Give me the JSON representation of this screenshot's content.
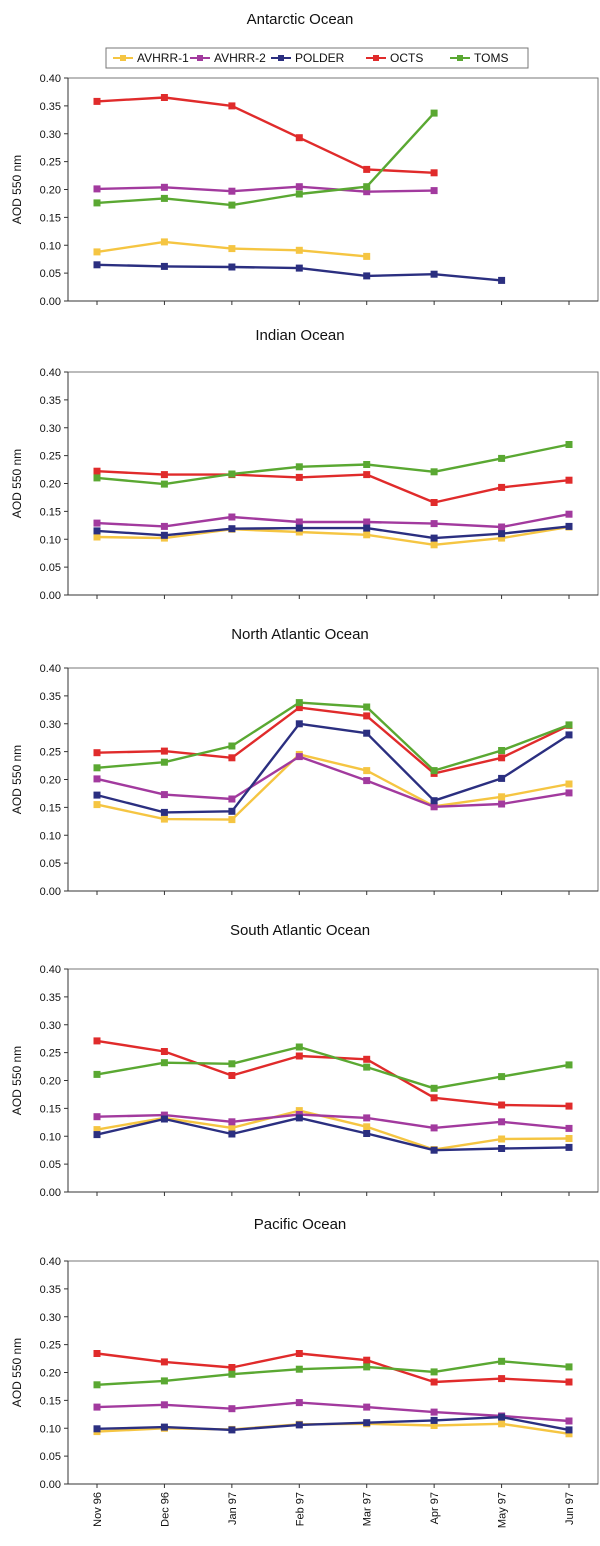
{
  "figure": {
    "x_categories": [
      "Nov 96",
      "Dec 96",
      "Jan 97",
      "Feb 97",
      "Mar 97",
      "Apr 97",
      "May 97",
      "Jun 97"
    ]
  },
  "legend": [
    {
      "name": "AVHRR-1",
      "color": "#f5c542"
    },
    {
      "name": "AVHRR-2",
      "color": "#a23a9e"
    },
    {
      "name": "POLDER",
      "color": "#2b2f80"
    },
    {
      "name": "OCTS",
      "color": "#e02b2b"
    },
    {
      "name": "TOMS",
      "color": "#5aa832"
    }
  ],
  "chart_data": [
    {
      "type": "line",
      "title": "Antarctic Ocean",
      "ylabel": "AOD 550 nm",
      "xlabel": "",
      "ylim": [
        0,
        0.4
      ],
      "yticks": [
        "0.00",
        "0.05",
        "0.10",
        "0.15",
        "0.20",
        "0.25",
        "0.30",
        "0.35",
        "0.40"
      ],
      "categories": [
        "Nov 96",
        "Dec 96",
        "Jan 97",
        "Feb 97",
        "Mar 97",
        "Apr 97",
        "May 97",
        "Jun 97"
      ],
      "show_x_tick_labels": false,
      "series": [
        {
          "name": "AVHRR-1",
          "color": "#f5c542",
          "values": [
            0.088,
            0.106,
            0.094,
            0.091,
            0.08,
            null,
            null,
            null
          ]
        },
        {
          "name": "AVHRR-2",
          "color": "#a23a9e",
          "values": [
            0.201,
            0.204,
            0.197,
            0.205,
            0.196,
            0.198,
            null,
            null
          ]
        },
        {
          "name": "POLDER",
          "color": "#2b2f80",
          "values": [
            0.065,
            0.062,
            0.061,
            0.059,
            0.045,
            0.048,
            0.037,
            null
          ]
        },
        {
          "name": "OCTS",
          "color": "#e02b2b",
          "values": [
            0.358,
            0.365,
            0.35,
            0.293,
            0.236,
            0.23,
            null,
            null
          ]
        },
        {
          "name": "TOMS",
          "color": "#5aa832",
          "values": [
            0.176,
            0.184,
            0.172,
            0.192,
            0.205,
            0.337,
            null,
            null
          ]
        }
      ]
    },
    {
      "type": "line",
      "title": "Indian Ocean",
      "ylabel": "AOD 550 nm",
      "xlabel": "",
      "ylim": [
        0,
        0.4
      ],
      "yticks": [
        "0.00",
        "0.05",
        "0.10",
        "0.15",
        "0.20",
        "0.25",
        "0.30",
        "0.35",
        "0.40"
      ],
      "categories": [
        "Nov 96",
        "Dec 96",
        "Jan 97",
        "Feb 97",
        "Mar 97",
        "Apr 97",
        "May 97",
        "Jun 97"
      ],
      "show_x_tick_labels": false,
      "series": [
        {
          "name": "AVHRR-1",
          "color": "#f5c542",
          "values": [
            0.104,
            0.102,
            0.118,
            0.113,
            0.108,
            0.09,
            0.102,
            0.122
          ]
        },
        {
          "name": "AVHRR-2",
          "color": "#a23a9e",
          "values": [
            0.129,
            0.123,
            0.14,
            0.131,
            0.131,
            0.128,
            0.122,
            0.145
          ]
        },
        {
          "name": "POLDER",
          "color": "#2b2f80",
          "values": [
            0.115,
            0.107,
            0.119,
            0.12,
            0.12,
            0.102,
            0.11,
            0.123
          ]
        },
        {
          "name": "OCTS",
          "color": "#e02b2b",
          "values": [
            0.222,
            0.216,
            0.216,
            0.211,
            0.216,
            0.166,
            0.193,
            0.206
          ]
        },
        {
          "name": "TOMS",
          "color": "#5aa832",
          "values": [
            0.21,
            0.199,
            0.217,
            0.23,
            0.234,
            0.221,
            0.245,
            0.27
          ]
        }
      ]
    },
    {
      "type": "line",
      "title": "North Atlantic Ocean",
      "ylabel": "AOD 550 nm",
      "xlabel": "",
      "ylim": [
        0,
        0.4
      ],
      "yticks": [
        "0.00",
        "0.05",
        "0.10",
        "0.15",
        "0.20",
        "0.25",
        "0.30",
        "0.35",
        "0.40"
      ],
      "categories": [
        "Nov 96",
        "Dec 96",
        "Jan 97",
        "Feb 97",
        "Mar 97",
        "Apr 97",
        "May 97",
        "Jun 97"
      ],
      "show_x_tick_labels": false,
      "series": [
        {
          "name": "AVHRR-1",
          "color": "#f5c542",
          "values": [
            0.155,
            0.129,
            0.128,
            0.245,
            0.216,
            0.152,
            0.169,
            0.192
          ]
        },
        {
          "name": "AVHRR-2",
          "color": "#a23a9e",
          "values": [
            0.201,
            0.173,
            0.165,
            0.241,
            0.198,
            0.151,
            0.156,
            0.176
          ]
        },
        {
          "name": "POLDER",
          "color": "#2b2f80",
          "values": [
            0.172,
            0.141,
            0.143,
            0.3,
            0.283,
            0.162,
            0.202,
            0.28
          ]
        },
        {
          "name": "OCTS",
          "color": "#e02b2b",
          "values": [
            0.248,
            0.251,
            0.239,
            0.329,
            0.314,
            0.211,
            0.239,
            0.297
          ]
        },
        {
          "name": "TOMS",
          "color": "#5aa832",
          "values": [
            0.221,
            0.231,
            0.26,
            0.338,
            0.33,
            0.216,
            0.252,
            0.298
          ]
        }
      ]
    },
    {
      "type": "line",
      "title": "South Atlantic Ocean",
      "ylabel": "AOD 550 nm",
      "xlabel": "",
      "ylim": [
        0,
        0.4
      ],
      "yticks": [
        "0.00",
        "0.05",
        "0.10",
        "0.15",
        "0.20",
        "0.25",
        "0.30",
        "0.35",
        "0.40"
      ],
      "categories": [
        "Nov 96",
        "Dec 96",
        "Jan 97",
        "Feb 97",
        "Mar 97",
        "Apr 97",
        "May 97",
        "Jun 97"
      ],
      "show_x_tick_labels": false,
      "series": [
        {
          "name": "AVHRR-1",
          "color": "#f5c542",
          "values": [
            0.112,
            0.133,
            0.115,
            0.146,
            0.117,
            0.076,
            0.095,
            0.096
          ]
        },
        {
          "name": "AVHRR-2",
          "color": "#a23a9e",
          "values": [
            0.135,
            0.138,
            0.126,
            0.139,
            0.133,
            0.115,
            0.126,
            0.114
          ]
        },
        {
          "name": "POLDER",
          "color": "#2b2f80",
          "values": [
            0.103,
            0.131,
            0.104,
            0.133,
            0.105,
            0.075,
            0.078,
            0.08
          ]
        },
        {
          "name": "OCTS",
          "color": "#e02b2b",
          "values": [
            0.271,
            0.252,
            0.209,
            0.244,
            0.238,
            0.169,
            0.156,
            0.154
          ]
        },
        {
          "name": "TOMS",
          "color": "#5aa832",
          "values": [
            0.211,
            0.232,
            0.23,
            0.26,
            0.224,
            0.186,
            0.207,
            0.228
          ]
        }
      ]
    },
    {
      "type": "line",
      "title": "Pacific Ocean",
      "ylabel": "AOD 550 nm",
      "xlabel": "",
      "ylim": [
        0,
        0.4
      ],
      "yticks": [
        "0.00",
        "0.05",
        "0.10",
        "0.15",
        "0.20",
        "0.25",
        "0.30",
        "0.35",
        "0.40"
      ],
      "categories": [
        "Nov 96",
        "Dec 96",
        "Jan 97",
        "Feb 97",
        "Mar 97",
        "Apr 97",
        "May 97",
        "Jun 97"
      ],
      "show_x_tick_labels": true,
      "series": [
        {
          "name": "AVHRR-1",
          "color": "#f5c542",
          "values": [
            0.094,
            0.1,
            0.098,
            0.107,
            0.108,
            0.105,
            0.108,
            0.09
          ]
        },
        {
          "name": "AVHRR-2",
          "color": "#a23a9e",
          "values": [
            0.138,
            0.142,
            0.135,
            0.146,
            0.138,
            0.129,
            0.122,
            0.113
          ]
        },
        {
          "name": "POLDER",
          "color": "#2b2f80",
          "values": [
            0.099,
            0.102,
            0.097,
            0.106,
            0.11,
            0.114,
            0.12,
            0.097
          ]
        },
        {
          "name": "OCTS",
          "color": "#e02b2b",
          "values": [
            0.234,
            0.219,
            0.209,
            0.234,
            0.222,
            0.183,
            0.189,
            0.183
          ]
        },
        {
          "name": "TOMS",
          "color": "#5aa832",
          "values": [
            0.178,
            0.185,
            0.197,
            0.206,
            0.21,
            0.201,
            0.22,
            0.21
          ]
        }
      ]
    }
  ]
}
